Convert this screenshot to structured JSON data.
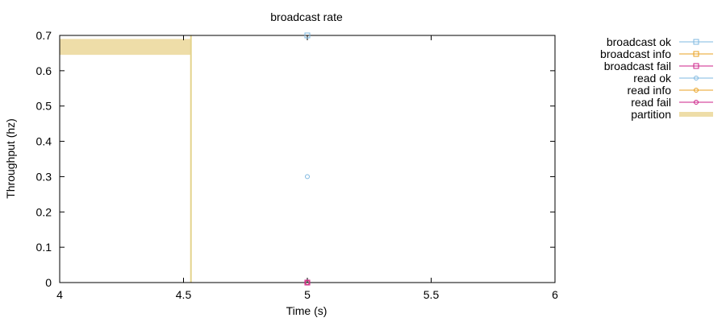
{
  "chart_data": {
    "type": "scatter",
    "title": "broadcast rate",
    "xlabel": "Time (s)",
    "ylabel": "Throughput (hz)",
    "xlim": [
      4,
      6
    ],
    "ylim": [
      0,
      0.7
    ],
    "xticks": [
      {
        "value": 4,
        "label": "4"
      },
      {
        "value": 4.5,
        "label": "4.5"
      },
      {
        "value": 5,
        "label": "5"
      },
      {
        "value": 5.5,
        "label": "5.5"
      },
      {
        "value": 6,
        "label": "6"
      }
    ],
    "yticks": [
      {
        "value": 0,
        "label": "0"
      },
      {
        "value": 0.1,
        "label": "0.1"
      },
      {
        "value": 0.2,
        "label": "0.2"
      },
      {
        "value": 0.3,
        "label": "0.3"
      },
      {
        "value": 0.4,
        "label": "0.4"
      },
      {
        "value": 0.5,
        "label": "0.5"
      },
      {
        "value": 0.6,
        "label": "0.6"
      },
      {
        "value": 0.7,
        "label": "0.7"
      }
    ],
    "legend_position": "outside-right",
    "series": [
      {
        "name": "broadcast ok",
        "color": "#7fb8e0",
        "marker": "square",
        "points": [
          [
            5,
            0.7
          ]
        ]
      },
      {
        "name": "broadcast info",
        "color": "#e8a020",
        "marker": "square",
        "points": [
          [
            5,
            0
          ]
        ]
      },
      {
        "name": "broadcast fail",
        "color": "#cc2288",
        "marker": "square",
        "points": [
          [
            5,
            0
          ]
        ]
      },
      {
        "name": "read ok",
        "color": "#7fb8e0",
        "marker": "circle",
        "points": [
          [
            5,
            0.3
          ]
        ]
      },
      {
        "name": "read info",
        "color": "#e8a020",
        "marker": "circle",
        "points": [
          [
            5,
            0
          ]
        ]
      },
      {
        "name": "read fail",
        "color": "#cc2288",
        "marker": "circle",
        "points": [
          [
            5,
            0
          ]
        ]
      }
    ],
    "partition": {
      "name": "partition",
      "color": "#eedda8",
      "line_color": "#e4d48c",
      "x_start": 4,
      "x_end": 4.53,
      "y_low": 0.645,
      "y_high": 0.69
    }
  }
}
